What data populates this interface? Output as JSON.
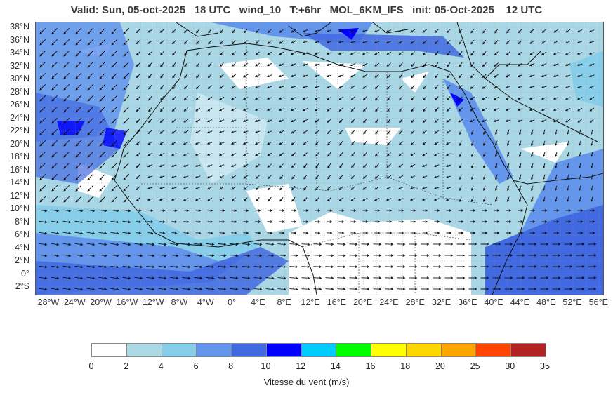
{
  "title": "Valid: Sun, 05-oct-2025   18 UTC   wind_10   T:+6hr   MOL_6KM_IFS   init: 05-Oct-2025    12 UTC",
  "lat_labels": [
    "38°N",
    "36°N",
    "34°N",
    "32°N",
    "30°N",
    "28°N",
    "26°N",
    "24°N",
    "22°N",
    "20°N",
    "18°N",
    "16°N",
    "14°N",
    "12°N",
    "10°N",
    "8°N",
    "6°N",
    "4°N",
    "2°N",
    "0°",
    "2°S"
  ],
  "lon_labels": [
    "28°W",
    "24°W",
    "20°W",
    "16°W",
    "12°W",
    "8°W",
    "4°W",
    "0°",
    "4°E",
    "8°E",
    "12°E",
    "16°E",
    "20°E",
    "24°E",
    "28°E",
    "32°E",
    "36°E",
    "40°E",
    "44°E",
    "48°E",
    "52°E",
    "56°E"
  ],
  "colorbar": {
    "label": "Vitesse du vent (m/s)",
    "ticks": [
      "0",
      "2",
      "4",
      "6",
      "8",
      "10",
      "12",
      "14",
      "16",
      "18",
      "20",
      "25",
      "30",
      "35"
    ],
    "colors": [
      "#ffffff",
      "#add8e6",
      "#87ceeb",
      "#6495ed",
      "#4169e1",
      "#0000ff",
      "#00ccff",
      "#00ff00",
      "#ffff00",
      "#ffd700",
      "#ffa500",
      "#ff4500",
      "#b22222"
    ]
  }
}
